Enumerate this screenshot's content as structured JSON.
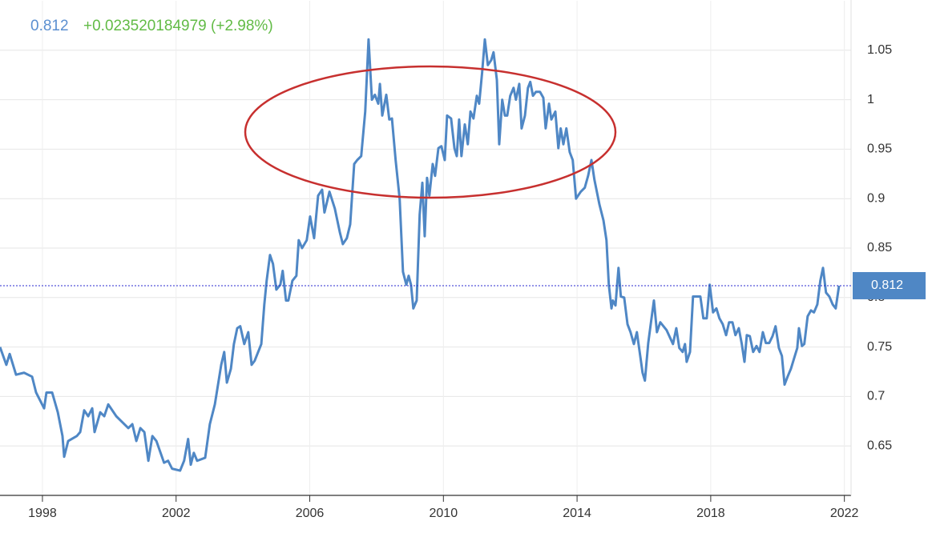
{
  "chart_data": {
    "type": "line",
    "current_value": 0.812,
    "change_label": "+0.023520184979 (+2.98%)",
    "color": "#4f87c5",
    "x": [
      1996.73,
      1996.92,
      1997.02,
      1997.21,
      1997.45,
      1997.69,
      1997.81,
      1998.05,
      1998.12,
      1998.29,
      1998.46,
      1998.6,
      1998.65,
      1998.77,
      1999.03,
      1999.13,
      1999.25,
      1999.37,
      1999.49,
      1999.56,
      1999.73,
      1999.85,
      1999.97,
      2000.21,
      2000.33,
      2000.57,
      2000.69,
      2000.81,
      2000.93,
      2001.05,
      2001.17,
      2001.29,
      2001.41,
      2001.64,
      2001.76,
      2001.88,
      2002.12,
      2002.24,
      2002.36,
      2002.44,
      2002.53,
      2002.63,
      2002.87,
      2003.01,
      2003.16,
      2003.35,
      2003.44,
      2003.52,
      2003.64,
      2003.73,
      2003.83,
      2003.92,
      2004.04,
      2004.16,
      2004.26,
      2004.35,
      2004.55,
      2004.64,
      2004.71,
      2004.81,
      2004.9,
      2005.0,
      2005.12,
      2005.19,
      2005.29,
      2005.36,
      2005.48,
      2005.6,
      2005.67,
      2005.77,
      2005.91,
      2006.01,
      2006.13,
      2006.25,
      2006.37,
      2006.44,
      2006.59,
      2006.75,
      2006.9,
      2006.99,
      2007.11,
      2007.21,
      2007.33,
      2007.42,
      2007.54,
      2007.66,
      2007.76,
      2007.86,
      2007.95,
      2008.05,
      2008.1,
      2008.17,
      2008.29,
      2008.38,
      2008.46,
      2008.57,
      2008.69,
      2008.79,
      2008.89,
      2008.96,
      2009.03,
      2009.1,
      2009.2,
      2009.29,
      2009.37,
      2009.44,
      2009.51,
      2009.58,
      2009.68,
      2009.75,
      2009.85,
      2009.94,
      2010.04,
      2010.11,
      2010.23,
      2010.33,
      2010.4,
      2010.47,
      2010.54,
      2010.64,
      2010.73,
      2010.81,
      2010.9,
      2011.0,
      2011.07,
      2011.16,
      2011.24,
      2011.33,
      2011.43,
      2011.5,
      2011.6,
      2011.67,
      2011.76,
      2011.84,
      2011.91,
      2012.0,
      2012.1,
      2012.17,
      2012.27,
      2012.34,
      2012.44,
      2012.53,
      2012.6,
      2012.68,
      2012.77,
      2012.89,
      2012.99,
      2013.06,
      2013.16,
      2013.23,
      2013.35,
      2013.44,
      2013.51,
      2013.59,
      2013.68,
      2013.78,
      2013.87,
      2013.97,
      2014.11,
      2014.23,
      2014.33,
      2014.43,
      2014.52,
      2014.67,
      2014.79,
      2014.88,
      2014.95,
      2015.03,
      2015.07,
      2015.15,
      2015.24,
      2015.31,
      2015.41,
      2015.51,
      2015.6,
      2015.7,
      2015.79,
      2015.89,
      2015.96,
      2016.03,
      2016.13,
      2016.22,
      2016.3,
      2016.39,
      2016.49,
      2016.68,
      2016.87,
      2016.97,
      2017.06,
      2017.16,
      2017.23,
      2017.28,
      2017.38,
      2017.47,
      2017.69,
      2017.78,
      2017.88,
      2017.97,
      2018.07,
      2018.17,
      2018.26,
      2018.36,
      2018.46,
      2018.55,
      2018.65,
      2018.74,
      2018.84,
      2018.93,
      2019.01,
      2019.08,
      2019.17,
      2019.27,
      2019.37,
      2019.46,
      2019.56,
      2019.65,
      2019.75,
      2019.85,
      2019.94,
      2020.04,
      2020.13,
      2020.21,
      2020.3,
      2020.4,
      2020.49,
      2020.59,
      2020.64,
      2020.73,
      2020.8,
      2020.9,
      2021.0,
      2021.09,
      2021.19,
      2021.28,
      2021.36,
      2021.45,
      2021.55,
      2021.65,
      2021.74,
      2021.84
    ],
    "values": [
      0.75,
      0.732,
      0.743,
      0.722,
      0.724,
      0.72,
      0.704,
      0.688,
      0.704,
      0.704,
      0.684,
      0.66,
      0.639,
      0.655,
      0.66,
      0.664,
      0.686,
      0.68,
      0.688,
      0.664,
      0.684,
      0.68,
      0.692,
      0.68,
      0.676,
      0.668,
      0.672,
      0.655,
      0.668,
      0.664,
      0.635,
      0.66,
      0.655,
      0.633,
      0.635,
      0.627,
      0.625,
      0.635,
      0.657,
      0.631,
      0.643,
      0.635,
      0.638,
      0.672,
      0.692,
      0.732,
      0.745,
      0.714,
      0.728,
      0.753,
      0.769,
      0.771,
      0.753,
      0.765,
      0.732,
      0.736,
      0.753,
      0.793,
      0.817,
      0.843,
      0.834,
      0.808,
      0.813,
      0.827,
      0.797,
      0.797,
      0.817,
      0.822,
      0.858,
      0.85,
      0.858,
      0.882,
      0.86,
      0.903,
      0.909,
      0.886,
      0.907,
      0.89,
      0.866,
      0.854,
      0.86,
      0.874,
      0.935,
      0.939,
      0.943,
      0.988,
      1.061,
      1.0,
      1.005,
      0.996,
      1.016,
      0.984,
      1.005,
      0.98,
      0.981,
      0.939,
      0.9,
      0.826,
      0.813,
      0.822,
      0.813,
      0.789,
      0.797,
      0.884,
      0.916,
      0.862,
      0.921,
      0.903,
      0.935,
      0.923,
      0.951,
      0.953,
      0.939,
      0.984,
      0.981,
      0.951,
      0.943,
      0.98,
      0.943,
      0.975,
      0.955,
      0.988,
      0.981,
      1.004,
      0.996,
      1.028,
      1.061,
      1.035,
      1.04,
      1.048,
      1.02,
      0.955,
      1.0,
      0.984,
      0.984,
      1.004,
      1.012,
      1.0,
      1.016,
      0.971,
      0.984,
      1.012,
      1.018,
      1.004,
      1.008,
      1.008,
      1.002,
      0.971,
      0.996,
      0.98,
      0.988,
      0.951,
      0.971,
      0.955,
      0.971,
      0.947,
      0.939,
      0.9,
      0.907,
      0.911,
      0.923,
      0.939,
      0.919,
      0.894,
      0.878,
      0.858,
      0.813,
      0.789,
      0.797,
      0.792,
      0.83,
      0.801,
      0.8,
      0.773,
      0.765,
      0.753,
      0.765,
      0.741,
      0.724,
      0.716,
      0.754,
      0.777,
      0.797,
      0.765,
      0.775,
      0.767,
      0.753,
      0.769,
      0.749,
      0.745,
      0.753,
      0.735,
      0.745,
      0.801,
      0.801,
      0.779,
      0.779,
      0.813,
      0.785,
      0.789,
      0.779,
      0.773,
      0.762,
      0.775,
      0.775,
      0.762,
      0.769,
      0.753,
      0.735,
      0.762,
      0.761,
      0.745,
      0.751,
      0.745,
      0.765,
      0.754,
      0.754,
      0.761,
      0.771,
      0.749,
      0.741,
      0.712,
      0.72,
      0.728,
      0.738,
      0.749,
      0.769,
      0.751,
      0.753,
      0.781,
      0.787,
      0.785,
      0.793,
      0.817,
      0.83,
      0.805,
      0.801,
      0.793,
      0.789,
      0.812
    ],
    "xlim": [
      1996.73,
      2022.2
    ],
    "ylim": [
      0.6,
      1.1
    ],
    "xticks": [
      1998,
      2002,
      2006,
      2010,
      2014,
      2018,
      2022
    ],
    "yticks": [
      0.65,
      0.7,
      0.75,
      0.8,
      0.85,
      0.9,
      0.95,
      1,
      1.05
    ],
    "grid": true
  }
}
